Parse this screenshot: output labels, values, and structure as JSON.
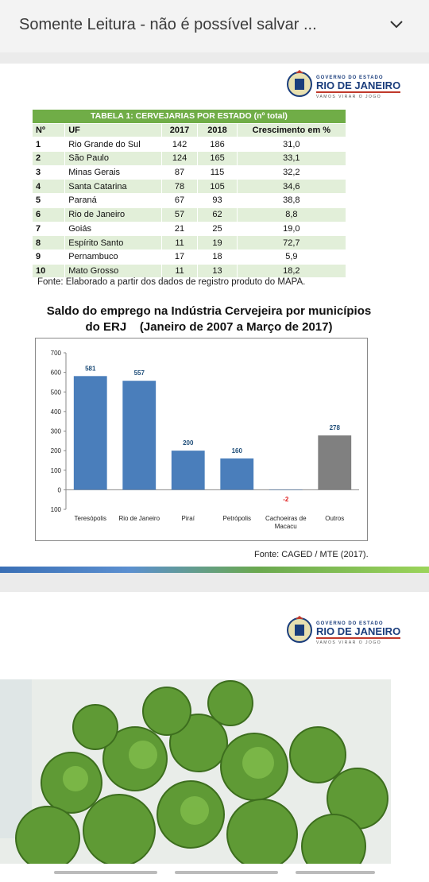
{
  "topbar": {
    "title": "Somente Leitura - não é possível salvar ..."
  },
  "logos": [
    {
      "line1": "GOVERNO DO ESTADO",
      "line2": "RIO DE JANEIRO",
      "line3": "VAMOS VIRAR O JOGO"
    },
    {
      "line1": "GOVERNO DO ESTADO",
      "line2": "RIO DE JANEIRO",
      "line3": "VAMOS VIRAR O JOGO"
    }
  ],
  "table": {
    "title": "TABELA 1: CERVEJARIAS POR ESTADO (nº total)",
    "columns": [
      "Nº",
      "UF",
      "2017",
      "2018",
      "Crescimento em %"
    ],
    "rows": [
      [
        "1",
        "Rio Grande do Sul",
        "142",
        "186",
        "31,0"
      ],
      [
        "2",
        "São Paulo",
        "124",
        "165",
        "33,1"
      ],
      [
        "3",
        "Minas Gerais",
        "87",
        "115",
        "32,2"
      ],
      [
        "4",
        "Santa Catarina",
        "78",
        "105",
        "34,6"
      ],
      [
        "5",
        "Paraná",
        "67",
        "93",
        "38,8"
      ],
      [
        "6",
        "Rio de Janeiro",
        "57",
        "62",
        "8,8"
      ],
      [
        "7",
        "Goiás",
        "21",
        "25",
        "19,0"
      ],
      [
        "8",
        "Espírito Santo",
        "11",
        "19",
        "72,7"
      ],
      [
        "9",
        "Pernambuco",
        "17",
        "18",
        "5,9"
      ],
      [
        "10",
        "Mato Grosso",
        "11",
        "13",
        "18,2"
      ]
    ],
    "source": "Fonte: Elaborado a partir dos dados de registro produto do MAPA."
  },
  "chart_data": {
    "type": "bar",
    "title": "Saldo do emprego na Indústria Cervejeira por municípios do ERJ    (Janeiro de 2007 a Março de 2017)",
    "categories": [
      "Teresópolis",
      "Rio de Janeiro",
      "Piraí",
      "Petrópolis",
      "Cachoeiras de Macacu",
      "Outros"
    ],
    "values": [
      581,
      557,
      200,
      160,
      -2,
      278
    ],
    "colors": [
      "#4a7ebb",
      "#4a7ebb",
      "#4a7ebb",
      "#4a7ebb",
      "#4a7ebb",
      "#808080"
    ],
    "ylim": [
      -100,
      700
    ],
    "yticks": [
      {
        "value": -100,
        "label": "100"
      },
      0,
      100,
      200,
      300,
      400,
      500,
      600,
      700
    ],
    "grid": false,
    "source": "Fonte: CAGED / MTE (2017)."
  }
}
